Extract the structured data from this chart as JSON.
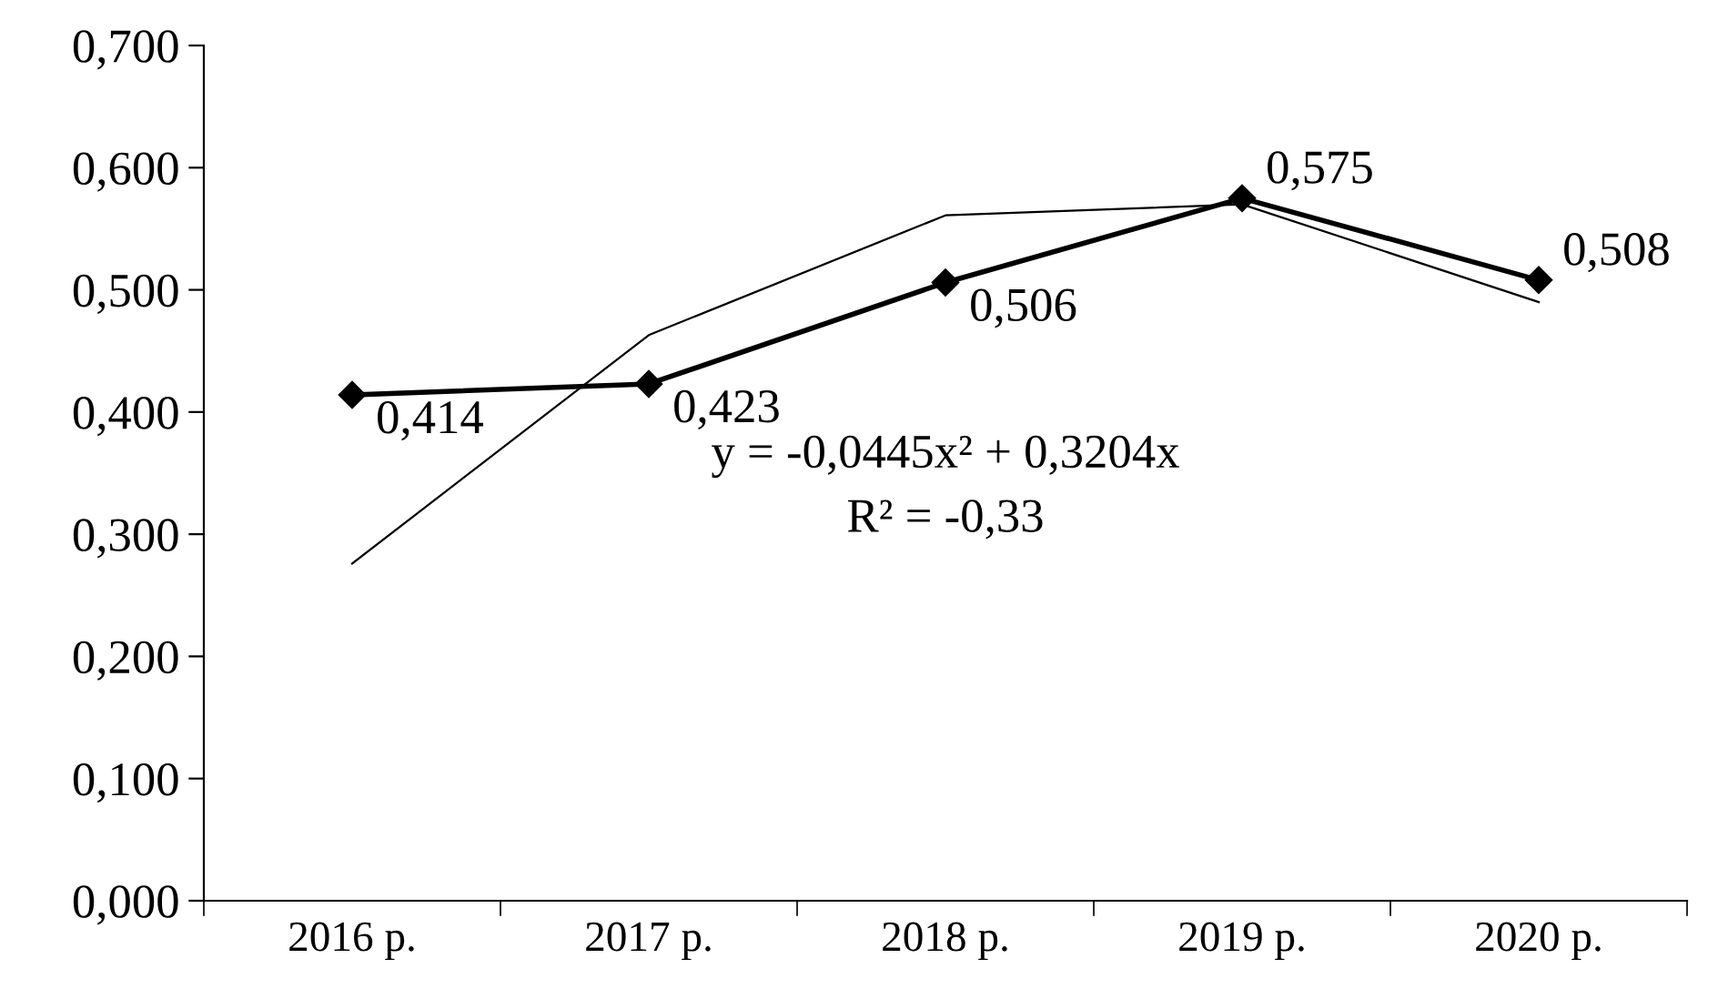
{
  "chart_data": {
    "type": "line",
    "categories": [
      "2016 р.",
      "2017 р.",
      "2018 р.",
      "2019 р.",
      "2020 р."
    ],
    "series": [
      {
        "type": "line",
        "color": "#000000",
        "marker": "diamond",
        "values": [
          0.414,
          0.423,
          0.506,
          0.575,
          0.508
        ],
        "value_labels": [
          "0,414",
          "0,423",
          "0,506",
          "0,575",
          "0,508"
        ]
      },
      {
        "type": "line",
        "color": "#000000",
        "marker": "none",
        "values": [
          0.276,
          0.463,
          0.561,
          0.57,
          0.49
        ]
      }
    ],
    "ylim": [
      0,
      0.7
    ],
    "yticks": [
      {
        "value": 0,
        "label": "0,000"
      },
      {
        "value": 0.1,
        "label": "0,100"
      },
      {
        "value": 0.2,
        "label": "0,200"
      },
      {
        "value": 0.3,
        "label": "0,300"
      },
      {
        "value": 0.4,
        "label": "0,400"
      },
      {
        "value": 0.5,
        "label": "0,500"
      },
      {
        "value": 0.6,
        "label": "0,600"
      },
      {
        "value": 0.7,
        "label": "0,700"
      }
    ],
    "annotations": [
      "y = -0,0445x² + 0,3204x",
      "R² = -0,33"
    ],
    "grid": false,
    "legend": false
  }
}
